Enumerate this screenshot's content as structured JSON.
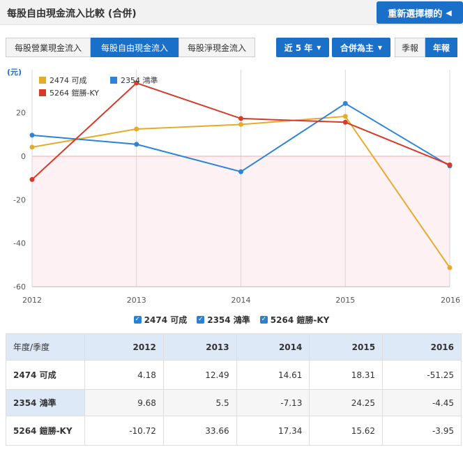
{
  "header": {
    "title": "每股自由現金流入比較 (合併)",
    "reselect_label": "重新選擇標的",
    "reselect_icon": "triangle-left-icon"
  },
  "tabs": [
    {
      "label": "每股營業現金流入",
      "active": false
    },
    {
      "label": "每股自由現金流入",
      "active": true
    },
    {
      "label": "每股淨現金流入",
      "active": false
    }
  ],
  "controls": {
    "period_label": "近 5 年",
    "basis_label": "合併為主",
    "quarterly_label": "季報",
    "annual_label": "年報",
    "annual_selected": true
  },
  "colors": {
    "accent": "#1a6fc9",
    "zero_line": "#f4a9b0",
    "neg_fill": "#fdf1f3"
  },
  "chart_data": {
    "type": "line",
    "title": "每股自由現金流入比較 (合併)",
    "ylabel": "(元)",
    "x": [
      "2012",
      "2013",
      "2014",
      "2015",
      "2016"
    ],
    "ylim": [
      -60,
      30
    ],
    "yticks": [
      20,
      0,
      -20,
      -40,
      -60
    ],
    "grid": "vertical",
    "legend_position": "top-left",
    "series": [
      {
        "name": "2474 可成",
        "color": "#e5ac2c",
        "values": [
          4.18,
          12.49,
          14.61,
          18.31,
          -51.25
        ]
      },
      {
        "name": "2354 鴻準",
        "color": "#2b84d8",
        "values": [
          9.68,
          5.5,
          -7.13,
          24.25,
          -4.45
        ]
      },
      {
        "name": "5264 鎧勝-KY",
        "color": "#d83a2a",
        "values": [
          -10.72,
          33.66,
          17.34,
          15.62,
          -3.95
        ]
      }
    ]
  },
  "table": {
    "corner": "年度/季度",
    "columns": [
      "2012",
      "2013",
      "2014",
      "2015",
      "2016"
    ],
    "rows": [
      {
        "name": "2474 可成",
        "cells": [
          "4.18",
          "12.49",
          "14.61",
          "18.31",
          "-51.25"
        ]
      },
      {
        "name": "2354 鴻準",
        "cells": [
          "9.68",
          "5.5",
          "-7.13",
          "24.25",
          "-4.45"
        ]
      },
      {
        "name": "5264 鎧勝-KY",
        "cells": [
          "-10.72",
          "33.66",
          "17.34",
          "15.62",
          "-3.95"
        ]
      }
    ]
  }
}
